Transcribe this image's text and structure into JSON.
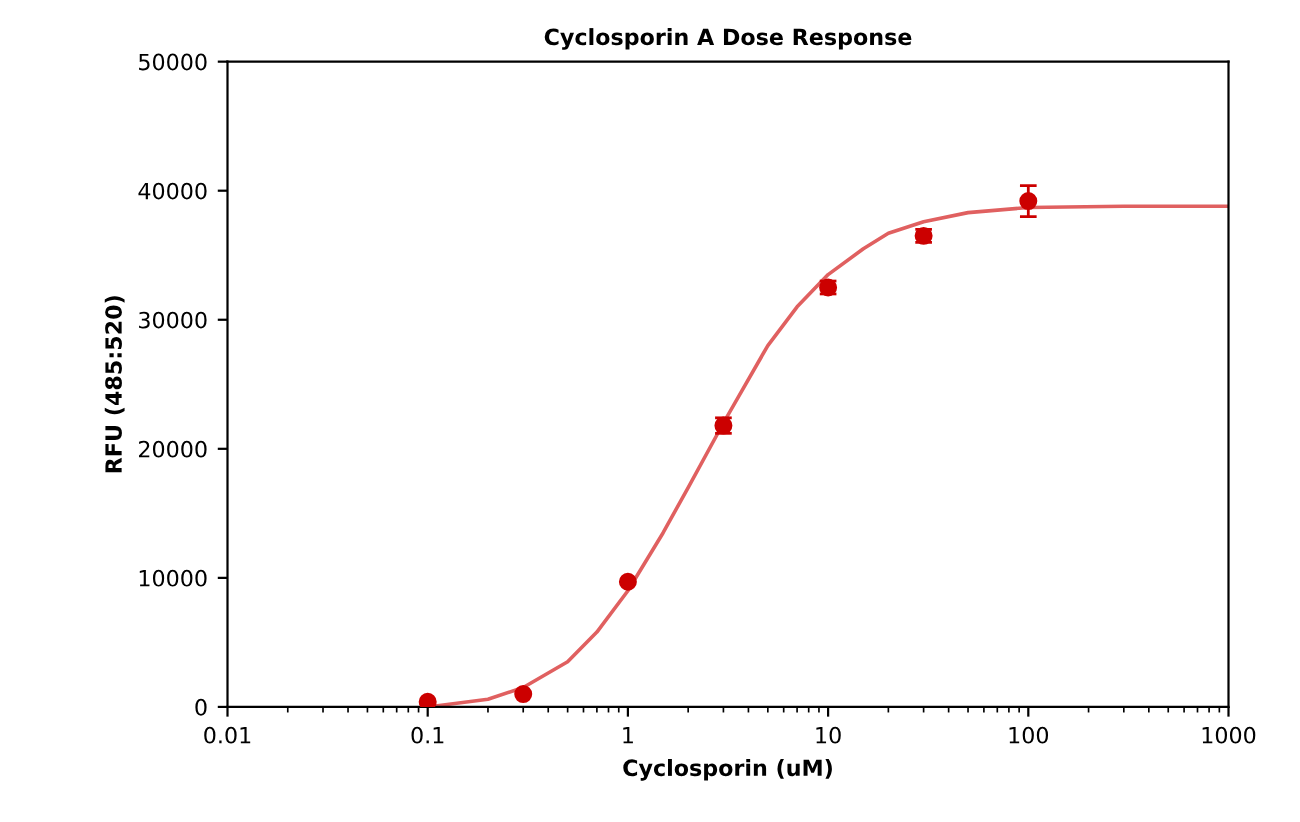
{
  "chart_data": {
    "type": "scatter",
    "title": "Cyclosporin A Dose Response",
    "xlabel": "Cyclosporin (uM)",
    "ylabel": "RFU (485:520)",
    "log": "x",
    "xlim": [
      0.01,
      1000
    ],
    "xticks": [
      0.01,
      0.1,
      1,
      10,
      100,
      1000
    ],
    "ylim": [
      0,
      50000
    ],
    "yticks": [
      0,
      10000,
      20000,
      30000,
      40000,
      50000
    ],
    "grid": false,
    "series": [
      {
        "type": "line",
        "color": "#e06060",
        "line_style": "solid",
        "marker": "none",
        "x": [
          0.1,
          0.2,
          0.3,
          0.5,
          0.7,
          1,
          1.5,
          2,
          3,
          5,
          7,
          10,
          15,
          20,
          30,
          50,
          100,
          300,
          1000
        ],
        "values": [
          0,
          600,
          1500,
          3500,
          5800,
          9000,
          13500,
          17000,
          22000,
          28000,
          31000,
          33500,
          35500,
          36700,
          37600,
          38300,
          38700,
          38800,
          38800
        ]
      },
      {
        "color": "#cc0000",
        "marker": "circle",
        "x": [
          0.1,
          0.3,
          1,
          3,
          10,
          30,
          100
        ],
        "values": [
          400,
          1000,
          9700,
          21800,
          32500,
          36500,
          39200
        ],
        "errors": [
          null,
          null,
          null,
          600,
          500,
          500,
          1200
        ]
      }
    ]
  }
}
